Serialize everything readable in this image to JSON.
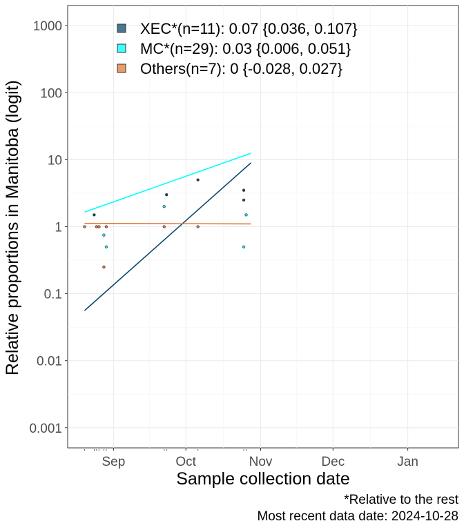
{
  "chart_data": {
    "type": "scatter",
    "xlabel": "Sample collection date",
    "ylabel": "Relative proportions in Manitoba (logit)",
    "y_scale": "log",
    "ylim": [
      0.0005,
      2000
    ],
    "xlim": [
      "2024-08-13",
      "2025-01-22"
    ],
    "x_ticks": [
      {
        "date": "2024-09-01",
        "label": "Sep"
      },
      {
        "date": "2024-10-01",
        "label": "Oct"
      },
      {
        "date": "2024-11-01",
        "label": "Nov"
      },
      {
        "date": "2024-12-01",
        "label": "Dec"
      },
      {
        "date": "2025-01-01",
        "label": "Jan"
      }
    ],
    "y_ticks": [
      {
        "value": 0.001,
        "label": "0.001"
      },
      {
        "value": 0.01,
        "label": "0.01"
      },
      {
        "value": 0.1,
        "label": "0.1"
      },
      {
        "value": 1,
        "label": "1"
      },
      {
        "value": 10,
        "label": "10"
      },
      {
        "value": 100,
        "label": "100"
      },
      {
        "value": 1000,
        "label": "1000"
      }
    ],
    "grid": true,
    "legend_position": "top",
    "series": [
      {
        "name": "XEC*(n=11): 0.07 {0.036, 0.107}",
        "color": "#0d4a6b",
        "fit": [
          {
            "x": "2024-08-20",
            "y": 0.056
          },
          {
            "x": "2024-10-28",
            "y": 9.0
          }
        ],
        "points": [
          {
            "x": "2024-09-23",
            "y": 3.0
          },
          {
            "x": "2024-10-06",
            "y": 5.0
          },
          {
            "x": "2024-10-25",
            "y": 3.5
          },
          {
            "x": "2024-10-25",
            "y": 2.5
          },
          {
            "x": "2024-08-24",
            "y": 1.5
          }
        ]
      },
      {
        "name": "MC*(n=29): 0.03 {0.006, 0.051}",
        "color": "#00ffff",
        "fit": [
          {
            "x": "2024-08-20",
            "y": 1.65
          },
          {
            "x": "2024-10-28",
            "y": 12.5
          }
        ],
        "points": [
          {
            "x": "2024-08-28",
            "y": 0.75
          },
          {
            "x": "2024-09-22",
            "y": 2.0
          },
          {
            "x": "2024-10-26",
            "y": 1.5
          },
          {
            "x": "2024-10-25",
            "y": 0.5
          },
          {
            "x": "2024-08-29",
            "y": 0.5
          }
        ]
      },
      {
        "name": "Others(n=7): 0 {-0.028, 0.027}",
        "color": "#e07b39",
        "fit": [
          {
            "x": "2024-08-20",
            "y": 1.12
          },
          {
            "x": "2024-10-28",
            "y": 1.1
          }
        ],
        "points": [
          {
            "x": "2024-08-20",
            "y": 1.0
          },
          {
            "x": "2024-08-25",
            "y": 1.0
          },
          {
            "x": "2024-08-26",
            "y": 1.0
          },
          {
            "x": "2024-08-29",
            "y": 1.0
          },
          {
            "x": "2024-09-22",
            "y": 1.0
          },
          {
            "x": "2024-10-06",
            "y": 1.0
          },
          {
            "x": "2024-08-28",
            "y": 0.25
          }
        ]
      }
    ]
  },
  "captions": {
    "line1": "*Relative to the rest",
    "line2": "Most recent data date: 2024-10-28"
  }
}
